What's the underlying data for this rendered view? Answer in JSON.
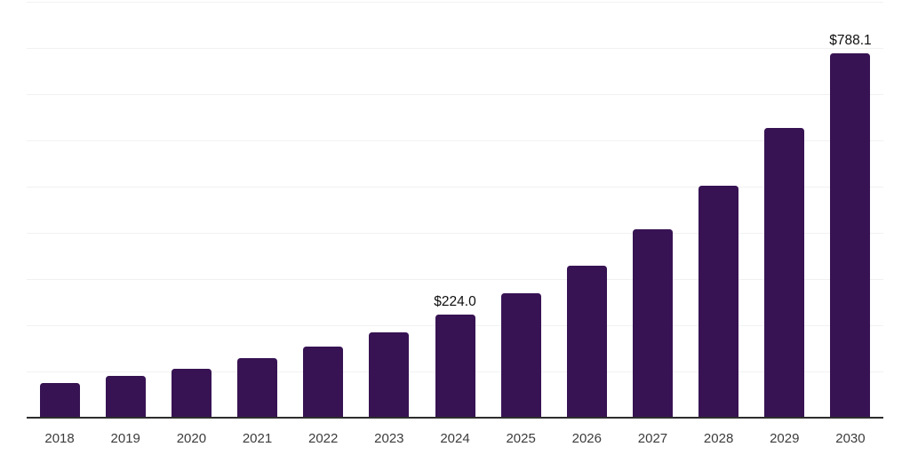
{
  "chart_data": {
    "type": "bar",
    "title": "",
    "xlabel": "",
    "ylabel": "",
    "categories": [
      "2018",
      "2019",
      "2020",
      "2021",
      "2022",
      "2023",
      "2024",
      "2025",
      "2026",
      "2027",
      "2028",
      "2029",
      "2030"
    ],
    "values": [
      75,
      90,
      105,
      128,
      153,
      184,
      224.0,
      270,
      329,
      408,
      502,
      626,
      788.1
    ],
    "data_labels": [
      "",
      "",
      "",
      "",
      "",
      "",
      "$224.0",
      "",
      "",
      "",
      "",
      "",
      "$788.1"
    ],
    "ylim": [
      0,
      900
    ],
    "grid_step": 100,
    "grid_on": true,
    "legend": [],
    "bar_color": "#371353",
    "grid_color": "#f1f1f1",
    "axis_color": "#2d2d2d",
    "tick_label_color": "#3c3c3c",
    "value_label_color": "#0f0f0f"
  }
}
